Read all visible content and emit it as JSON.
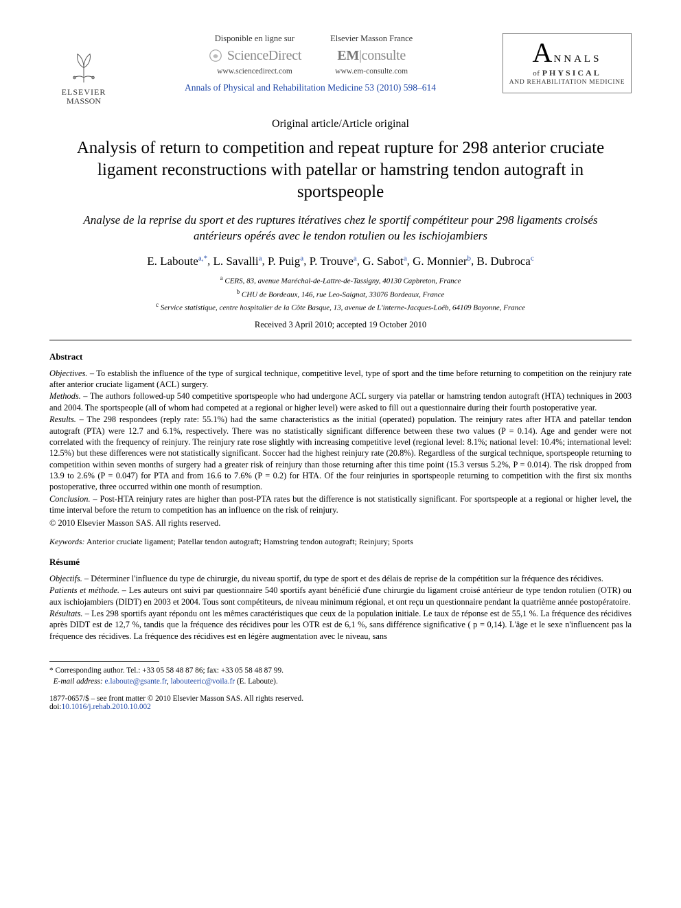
{
  "header": {
    "publisher": {
      "line1": "ELSEVIER",
      "line2": "MASSON"
    },
    "left_block": {
      "top": "Disponible en ligne sur",
      "brand": "ScienceDirect",
      "url": "www.sciencedirect.com"
    },
    "right_block": {
      "top": "Elsevier Masson France",
      "brand_prefix": "EM",
      "brand_suffix": "consulte",
      "url": "www.em-consulte.com"
    },
    "citation": "Annals of Physical and Rehabilitation Medicine 53 (2010) 598–614",
    "journal_badge": {
      "nnals": "NNALS",
      "of_physical": "of PHYSICAL",
      "rehab": "AND REHABILITATION MEDICINE"
    }
  },
  "article_type": "Original article/Article original",
  "title_en": "Analysis of return to competition and repeat rupture for 298 anterior cruciate ligament reconstructions with patellar or hamstring tendon autograft in sportspeople",
  "title_fr": "Analyse de la reprise du sport et des ruptures itératives chez le sportif compétiteur pour 298 ligaments croisés antérieurs opérés avec le tendon rotulien ou les ischiojambiers",
  "authors": [
    {
      "name": "E. Laboute",
      "aff": "a",
      "corr": true
    },
    {
      "name": "L. Savalli",
      "aff": "a"
    },
    {
      "name": "P. Puig",
      "aff": "a"
    },
    {
      "name": "P. Trouve",
      "aff": "a"
    },
    {
      "name": "G. Sabot",
      "aff": "a"
    },
    {
      "name": "G. Monnier",
      "aff": "b"
    },
    {
      "name": "B. Dubroca",
      "aff": "c"
    }
  ],
  "affiliations": {
    "a": "CERS, 83, avenue Maréchal-de-Lattre-de-Tassigny, 40130 Capbreton, France",
    "b": "CHU de Bordeaux, 146, rue Leo-Saignat, 33076 Bordeaux, France",
    "c": "Service statistique, centre hospitalier de la Côte Basque, 13, avenue de L'interne-Jacques-Loëb, 64109 Bayonne, France"
  },
  "dates": "Received 3 April 2010; accepted 19 October 2010",
  "abstract": {
    "heading": "Abstract",
    "objectives_label": "Objectives. –",
    "objectives": "To establish the influence of the type of surgical technique, competitive level, type of sport and the time before returning to competition on the reinjury rate after anterior cruciate ligament (ACL) surgery.",
    "methods_label": "Methods. –",
    "methods": "The authors followed-up 540 competitive sportspeople who had undergone ACL surgery via patellar or hamstring tendon autograft (HTA) techniques in 2003 and 2004. The sportspeople (all of whom had competed at a regional or higher level) were asked to fill out a questionnaire during their fourth postoperative year.",
    "results_label": "Results. –",
    "results": "The 298 respondees (reply rate: 55.1%) had the same characteristics as the initial (operated) population. The reinjury rates after HTA and patellar tendon autograft (PTA) were 12.7 and 6.1%, respectively. There was no statistically significant difference between these two values (P = 0.14). Age and gender were not correlated with the frequency of reinjury. The reinjury rate rose slightly with increasing competitive level (regional level: 8.1%; national level: 10.4%; international level: 12.5%) but these differences were not statistically significant. Soccer had the highest reinjury rate (20.8%). Regardless of the surgical technique, sportspeople returning to competition within seven months of surgery had a greater risk of reinjury than those returning after this time point (15.3 versus 5.2%, P = 0.014). The risk dropped from 13.9 to 2.6% (P = 0.047) for PTA and from 16.6 to 7.6% (P = 0.2) for HTA. Of the four reinjuries in sportspeople returning to competition with the first six months postoperative, three occurred within one month of resumption.",
    "conclusion_label": "Conclusion. –",
    "conclusion": "Post-HTA reinjury rates are higher than post-PTA rates but the difference is not statistically significant. For sportspeople at a regional or higher level, the time interval before the return to competition has an influence on the risk of reinjury.",
    "copyright": "© 2010 Elsevier Masson SAS. All rights reserved."
  },
  "keywords": {
    "label": "Keywords:",
    "text": "Anterior cruciate ligament; Patellar tendon autograft; Hamstring tendon autograft; Reinjury; Sports"
  },
  "resume": {
    "heading": "Résumé",
    "objectifs_label": "Objectifs. –",
    "objectifs": "Déterminer l'influence du type de chirurgie, du niveau sportif, du type de sport et des délais de reprise de la compétition sur la fréquence des récidives.",
    "patients_label": "Patients et méthode. –",
    "patients": "Les auteurs ont suivi par questionnaire 540 sportifs ayant bénéficié d'une chirurgie du ligament croisé antérieur de type tendon rotulien (OTR) ou aux ischiojambiers (DIDT) en 2003 et 2004. Tous sont compétiteurs, de niveau minimum régional, et ont reçu un questionnaire pendant la quatrième année postopératoire.",
    "resultats_label": "Résultats. –",
    "resultats": "Les 298 sportifs ayant répondu ont les mêmes caractéristiques que ceux de la population initiale. Le taux de réponse est de 55,1 %. La fréquence des récidives après DIDT est de 12,7 %, tandis que la fréquence des récidives pour les OTR est de 6,1 %, sans différence significative ( p = 0,14). L'âge et le sexe n'influencent pas la fréquence des récidives. La fréquence des récidives est en légère augmentation avec le niveau, sans"
  },
  "footnote": {
    "corr_label": "Corresponding author. ",
    "tel": "Tel.: +33 05 58 48 87 86; fax: +33 05 58 48 87 99.",
    "email_label": "E-mail address:",
    "email1": "e.laboute@gsante.fr",
    "email2": "labouteeric@voila.fr",
    "email_name": "(E. Laboute)."
  },
  "bottom": {
    "copyright_line": "1877-0657/$ – see front matter © 2010 Elsevier Masson SAS. All rights reserved.",
    "doi_label": "doi:",
    "doi": "10.1016/j.rehab.2010.10.002"
  },
  "colors": {
    "link": "#2048a8",
    "text": "#000000",
    "gray": "#888888"
  }
}
